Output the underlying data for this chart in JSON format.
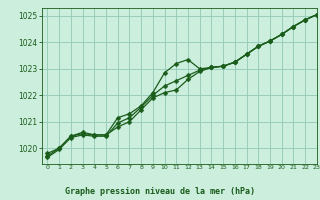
{
  "title": "Graphe pression niveau de la mer (hPa)",
  "bg_color": "#cceedd",
  "grid_color": "#99ccbb",
  "line_color": "#1a5c1a",
  "xlim": [
    -0.5,
    23
  ],
  "ylim": [
    1019.4,
    1025.3
  ],
  "yticks": [
    1020,
    1021,
    1022,
    1023,
    1024,
    1025
  ],
  "xticks": [
    0,
    1,
    2,
    3,
    4,
    5,
    6,
    7,
    8,
    9,
    10,
    11,
    12,
    13,
    14,
    15,
    16,
    17,
    18,
    19,
    20,
    21,
    22,
    23
  ],
  "series1": [
    1019.8,
    1020.0,
    1020.45,
    1020.6,
    1020.5,
    1020.5,
    1021.15,
    1021.3,
    1021.6,
    1022.1,
    1022.85,
    1023.2,
    1023.35,
    1023.0,
    1023.05,
    1023.1,
    1023.25,
    1023.55,
    1023.85,
    1024.05,
    1024.3,
    1024.6,
    1024.85,
    1025.05
  ],
  "series2": [
    1019.7,
    1020.0,
    1020.45,
    1020.55,
    1020.5,
    1020.5,
    1020.8,
    1021.0,
    1021.45,
    1021.9,
    1022.1,
    1022.2,
    1022.6,
    1022.9,
    1023.05,
    1023.1,
    1023.25,
    1023.55,
    1023.85,
    1024.05,
    1024.3,
    1024.6,
    1024.85,
    1025.05
  ],
  "series3": [
    1019.65,
    1019.95,
    1020.4,
    1020.5,
    1020.45,
    1020.45,
    1020.95,
    1021.15,
    1021.55,
    1022.0,
    1022.35,
    1022.55,
    1022.75,
    1022.95,
    1023.05,
    1023.1,
    1023.25,
    1023.55,
    1023.85,
    1024.05,
    1024.3,
    1024.6,
    1024.85,
    1025.05
  ]
}
